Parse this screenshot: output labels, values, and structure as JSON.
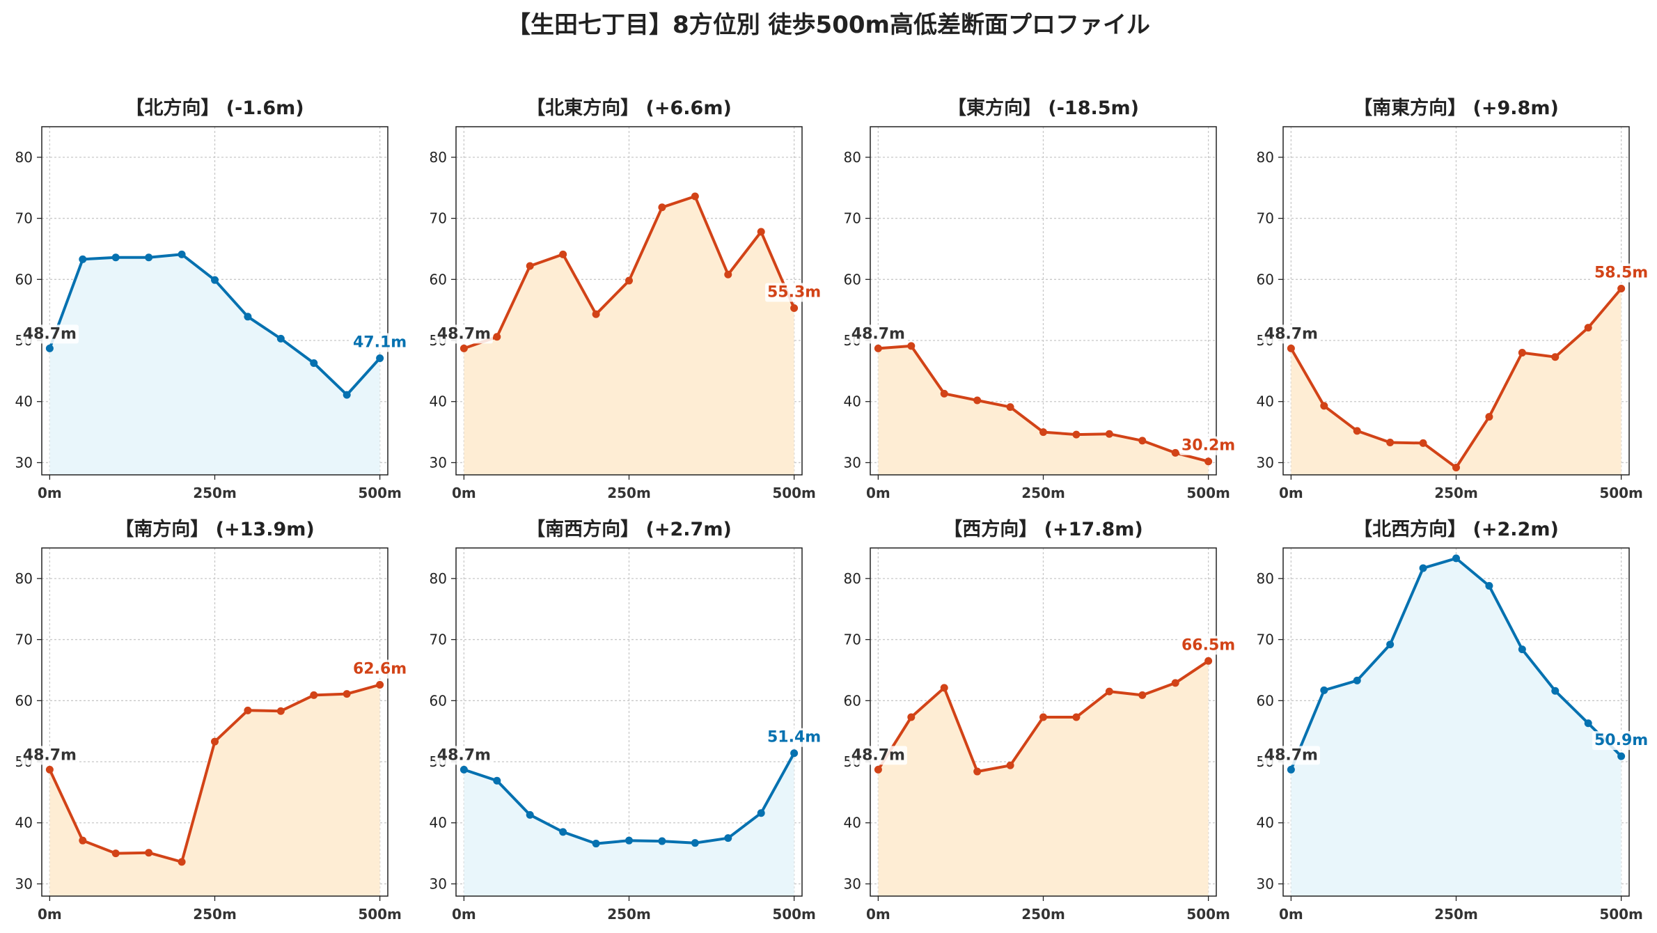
{
  "title": "【生田七丁目】8方位別 徒歩500m高低差断面プロファイル",
  "colors": {
    "up_line": "#d24317",
    "up_fill": "#feedd4",
    "down_line": "#0571b0",
    "down_fill": "#e9f6fb",
    "start_label": "#333333"
  },
  "chart_data": [
    {
      "type": "area",
      "title": "【北方向】 (-1.6m)",
      "trend": "down",
      "x": [
        0,
        50,
        100,
        150,
        200,
        250,
        300,
        350,
        400,
        450,
        500
      ],
      "xticks": [
        "0m",
        "250m",
        "500m"
      ],
      "yticks": [
        "30",
        "40",
        "50",
        "60",
        "70",
        "80"
      ],
      "xlim": [
        -12,
        512
      ],
      "ylim": [
        28,
        85
      ],
      "grid": true,
      "values": [
        48.7,
        63.3,
        63.6,
        63.6,
        64.1,
        59.9,
        53.9,
        50.3,
        46.3,
        41.1,
        47.1
      ],
      "start_label": "48.7m",
      "end_label": "47.1m"
    },
    {
      "type": "area",
      "title": "【北東方向】 (+6.6m)",
      "trend": "up",
      "x": [
        0,
        50,
        100,
        150,
        200,
        250,
        300,
        350,
        400,
        450,
        500
      ],
      "xticks": [
        "0m",
        "250m",
        "500m"
      ],
      "yticks": [
        "30",
        "40",
        "50",
        "60",
        "70",
        "80"
      ],
      "xlim": [
        -12,
        512
      ],
      "ylim": [
        28,
        85
      ],
      "grid": true,
      "values": [
        48.7,
        50.6,
        62.2,
        64.1,
        54.3,
        59.8,
        71.8,
        73.6,
        60.8,
        67.8,
        55.3
      ],
      "start_label": "48.7m",
      "end_label": "55.3m"
    },
    {
      "type": "area",
      "title": "【東方向】 (-18.5m)",
      "trend": "up",
      "x": [
        0,
        50,
        100,
        150,
        200,
        250,
        300,
        350,
        400,
        450,
        500
      ],
      "xticks": [
        "0m",
        "250m",
        "500m"
      ],
      "yticks": [
        "30",
        "40",
        "50",
        "60",
        "70",
        "80"
      ],
      "xlim": [
        -12,
        512
      ],
      "ylim": [
        28,
        85
      ],
      "grid": true,
      "values": [
        48.7,
        49.1,
        41.3,
        40.2,
        39.1,
        35.0,
        34.6,
        34.7,
        33.6,
        31.6,
        30.2
      ],
      "start_label": "48.7m",
      "end_label": "30.2m"
    },
    {
      "type": "area",
      "title": "【南東方向】 (+9.8m)",
      "trend": "up",
      "x": [
        0,
        50,
        100,
        150,
        200,
        250,
        300,
        350,
        400,
        450,
        500
      ],
      "xticks": [
        "0m",
        "250m",
        "500m"
      ],
      "yticks": [
        "30",
        "40",
        "50",
        "60",
        "70",
        "80"
      ],
      "xlim": [
        -12,
        512
      ],
      "ylim": [
        28,
        85
      ],
      "grid": true,
      "values": [
        48.7,
        39.3,
        35.2,
        33.3,
        33.2,
        29.2,
        37.5,
        48.0,
        47.3,
        52.1,
        58.5
      ],
      "start_label": "48.7m",
      "end_label": "58.5m"
    },
    {
      "type": "area",
      "title": "【南方向】 (+13.9m)",
      "trend": "up",
      "x": [
        0,
        50,
        100,
        150,
        200,
        250,
        300,
        350,
        400,
        450,
        500
      ],
      "xticks": [
        "0m",
        "250m",
        "500m"
      ],
      "yticks": [
        "30",
        "40",
        "50",
        "60",
        "70",
        "80"
      ],
      "xlim": [
        -12,
        512
      ],
      "ylim": [
        28,
        85
      ],
      "grid": true,
      "values": [
        48.7,
        37.1,
        35.0,
        35.1,
        33.6,
        53.3,
        58.4,
        58.3,
        60.9,
        61.1,
        62.6
      ],
      "start_label": "48.7m",
      "end_label": "62.6m"
    },
    {
      "type": "area",
      "title": "【南西方向】 (+2.7m)",
      "trend": "down",
      "x": [
        0,
        50,
        100,
        150,
        200,
        250,
        300,
        350,
        400,
        450,
        500
      ],
      "xticks": [
        "0m",
        "250m",
        "500m"
      ],
      "yticks": [
        "30",
        "40",
        "50",
        "60",
        "70",
        "80"
      ],
      "xlim": [
        -12,
        512
      ],
      "ylim": [
        28,
        85
      ],
      "grid": true,
      "values": [
        48.7,
        46.9,
        41.3,
        38.5,
        36.6,
        37.1,
        37.0,
        36.7,
        37.5,
        41.6,
        51.4
      ],
      "start_label": "48.7m",
      "end_label": "51.4m"
    },
    {
      "type": "area",
      "title": "【西方向】 (+17.8m)",
      "trend": "up",
      "x": [
        0,
        50,
        100,
        150,
        200,
        250,
        300,
        350,
        400,
        450,
        500
      ],
      "xticks": [
        "0m",
        "250m",
        "500m"
      ],
      "yticks": [
        "30",
        "40",
        "50",
        "60",
        "70",
        "80"
      ],
      "xlim": [
        -12,
        512
      ],
      "ylim": [
        28,
        85
      ],
      "grid": true,
      "values": [
        48.7,
        57.3,
        62.1,
        48.4,
        49.4,
        57.3,
        57.3,
        61.5,
        60.9,
        62.9,
        66.5
      ],
      "start_label": "48.7m",
      "end_label": "66.5m"
    },
    {
      "type": "area",
      "title": "【北西方向】 (+2.2m)",
      "trend": "down",
      "x": [
        0,
        50,
        100,
        150,
        200,
        250,
        300,
        350,
        400,
        450,
        500
      ],
      "xticks": [
        "0m",
        "250m",
        "500m"
      ],
      "yticks": [
        "30",
        "40",
        "50",
        "60",
        "70",
        "80"
      ],
      "xlim": [
        -12,
        512
      ],
      "ylim": [
        28,
        85
      ],
      "grid": true,
      "values": [
        48.7,
        61.7,
        63.3,
        69.2,
        81.7,
        83.3,
        78.8,
        68.4,
        61.6,
        56.3,
        50.9
      ],
      "start_label": "48.7m",
      "end_label": "50.9m"
    }
  ]
}
